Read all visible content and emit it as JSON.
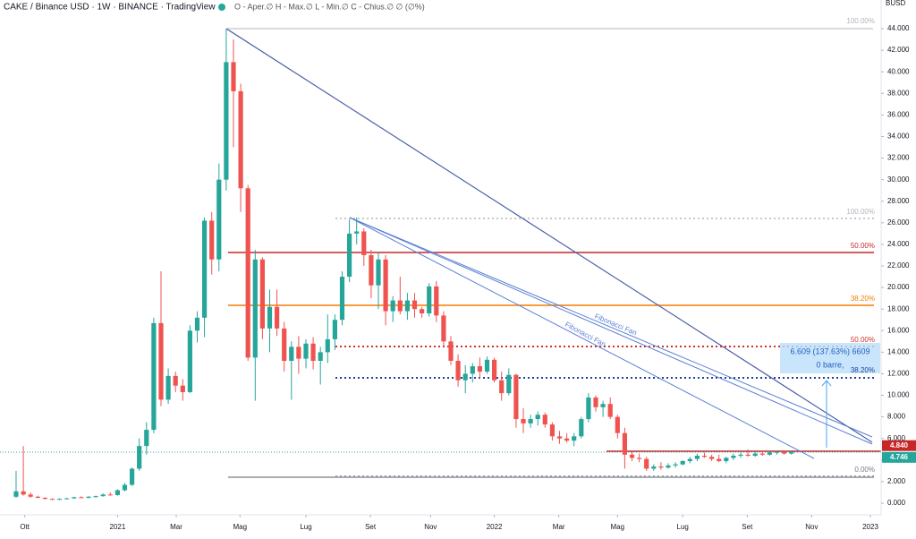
{
  "chart_data": {
    "type": "candlestick",
    "title": "CAKE / Binance USD · 1W · BINANCE · TradingView",
    "ohlc_legend": "O - Aper.∅ H - Max.∅ L - Min.∅ C - Chius.∅ ∅ (∅%)",
    "currency": "BUSD",
    "up_color": "#26a69a",
    "down_color": "#ef5350",
    "x": [
      0,
      1,
      2,
      3,
      4,
      5,
      6,
      7,
      8,
      9,
      10,
      11,
      12,
      13,
      14,
      15,
      16,
      17,
      18,
      19,
      20,
      21,
      22,
      23,
      24,
      25,
      26,
      27,
      28,
      29,
      30,
      31,
      32,
      33,
      34,
      35,
      36,
      37,
      38,
      39,
      40,
      41,
      42,
      43,
      44,
      45,
      46,
      47,
      48,
      49,
      50,
      51,
      52,
      53,
      54,
      55,
      56,
      57,
      58,
      59,
      60,
      61,
      62,
      63,
      64,
      65,
      66,
      67,
      68,
      69,
      70,
      71,
      72,
      73,
      74,
      75,
      76,
      77,
      78,
      79,
      80,
      81,
      82,
      83,
      84,
      85,
      86,
      87,
      88,
      89,
      90,
      91,
      92,
      93,
      94,
      95,
      96,
      97,
      98,
      99,
      100,
      101,
      102,
      103,
      104,
      105,
      106,
      107
    ],
    "open": [
      0.6,
      1.1,
      0.8,
      0.6,
      0.5,
      0.4,
      0.35,
      0.4,
      0.45,
      0.55,
      0.5,
      0.6,
      0.65,
      0.8,
      0.75,
      1.2,
      1.7,
      3.2,
      5.3,
      6.8,
      16.7,
      9.6,
      11.8,
      10.9,
      10.3,
      16.0,
      17.2,
      26.2,
      22.6,
      30.0,
      40.9,
      38.2,
      29.2,
      13.5,
      22.6,
      16.2,
      18.2,
      16.2,
      13.2,
      14.5,
      13.4,
      14.8,
      13.2,
      14.0,
      15.2,
      17.0,
      21.0,
      25.0,
      25.2,
      23.0,
      20.2,
      22.6,
      17.8,
      18.8,
      17.8,
      18.8,
      18.0,
      17.6,
      20.1,
      17.4,
      15.0,
      13.2,
      11.4,
      12.0,
      12.7,
      12.2,
      13.3,
      11.4,
      10.2,
      11.9,
      7.8,
      7.4,
      7.8,
      8.2,
      7.3,
      6.2,
      6.0,
      5.8,
      6.2,
      7.8,
      9.8,
      8.9,
      9.2,
      8.0,
      6.5,
      4.5,
      4.2,
      4.1,
      3.2,
      3.4,
      3.3,
      3.5,
      3.6,
      3.9,
      4.1,
      4.4,
      4.3,
      4.1,
      3.9,
      4.2,
      4.4,
      4.5,
      4.4,
      4.6,
      4.5,
      4.7,
      4.75,
      4.6
    ],
    "high": [
      3.0,
      5.3,
      1.0,
      0.7,
      0.55,
      0.45,
      0.45,
      0.5,
      0.6,
      0.65,
      0.65,
      0.7,
      0.9,
      1.0,
      1.3,
      1.9,
      3.3,
      6.0,
      7.5,
      17.2,
      21.5,
      12.5,
      12.2,
      11.5,
      16.5,
      17.8,
      26.5,
      27.0,
      31.5,
      44.0,
      43.0,
      38.9,
      29.5,
      23.5,
      22.8,
      19.8,
      19.8,
      16.8,
      15.0,
      15.5,
      15.2,
      15.4,
      14.5,
      17.5,
      17.5,
      21.5,
      26.3,
      26.5,
      25.5,
      23.5,
      23.2,
      23.0,
      19.2,
      21.0,
      19.5,
      19.5,
      18.2,
      20.4,
      20.6,
      17.8,
      15.5,
      13.8,
      12.8,
      13.0,
      13.5,
      13.6,
      13.5,
      12.2,
      12.5,
      12.0,
      8.8,
      8.2,
      8.5,
      8.4,
      7.5,
      6.7,
      6.5,
      6.5,
      8.0,
      10.2,
      10.0,
      9.5,
      9.8,
      8.2,
      7.0,
      4.8,
      4.6,
      4.3,
      3.6,
      3.8,
      3.7,
      3.8,
      4.0,
      4.3,
      4.6,
      4.7,
      4.5,
      4.5,
      4.3,
      4.6,
      4.7,
      5.0,
      4.8,
      4.9,
      4.8,
      4.9,
      4.9,
      4.9
    ],
    "low": [
      0.5,
      0.7,
      0.5,
      0.45,
      0.35,
      0.3,
      0.3,
      0.35,
      0.4,
      0.45,
      0.45,
      0.5,
      0.6,
      0.7,
      0.7,
      1.1,
      1.6,
      3.0,
      4.5,
      6.5,
      9.0,
      9.2,
      10.3,
      9.5,
      10.2,
      14.9,
      15.4,
      21.2,
      21.5,
      29.0,
      33.0,
      27.0,
      13.2,
      9.5,
      15.2,
      14.0,
      15.5,
      12.2,
      9.6,
      12.0,
      12.5,
      12.4,
      11.0,
      13.0,
      14.2,
      16.5,
      20.5,
      24.0,
      22.0,
      19.0,
      18.0,
      16.5,
      16.8,
      17.5,
      17.0,
      17.2,
      17.2,
      17.3,
      16.8,
      14.5,
      12.8,
      10.8,
      10.2,
      11.2,
      11.6,
      12.0,
      11.2,
      9.5,
      10.0,
      7.0,
      6.5,
      7.0,
      7.2,
      7.0,
      5.8,
      5.5,
      5.6,
      5.3,
      6.0,
      7.5,
      8.5,
      8.0,
      7.8,
      6.0,
      3.2,
      3.9,
      3.8,
      3.0,
      3.0,
      3.1,
      3.2,
      3.3,
      3.5,
      3.7,
      3.9,
      4.2,
      3.9,
      3.8,
      3.7,
      4.0,
      4.2,
      4.3,
      4.3,
      4.4,
      4.4,
      4.5,
      4.5,
      4.5
    ],
    "close": [
      1.1,
      0.8,
      0.6,
      0.5,
      0.4,
      0.35,
      0.4,
      0.45,
      0.55,
      0.5,
      0.6,
      0.65,
      0.8,
      0.75,
      1.2,
      1.7,
      3.2,
      5.3,
      6.8,
      16.7,
      9.6,
      11.8,
      10.9,
      10.3,
      16.0,
      17.2,
      26.2,
      22.6,
      30.0,
      40.9,
      38.2,
      29.2,
      13.5,
      22.6,
      16.2,
      18.2,
      16.2,
      13.2,
      14.5,
      13.4,
      14.8,
      13.2,
      14.0,
      15.2,
      17.0,
      21.0,
      25.0,
      25.2,
      23.0,
      20.2,
      22.6,
      17.8,
      18.8,
      17.8,
      18.8,
      18.0,
      17.6,
      20.1,
      17.4,
      15.0,
      13.2,
      11.4,
      12.0,
      12.7,
      12.2,
      13.3,
      11.4,
      10.2,
      11.9,
      7.8,
      7.4,
      7.8,
      8.2,
      7.3,
      6.2,
      6.0,
      5.8,
      6.2,
      7.8,
      9.8,
      8.9,
      9.2,
      8.0,
      6.5,
      4.5,
      4.2,
      4.1,
      3.2,
      3.4,
      3.3,
      3.5,
      3.6,
      3.9,
      4.1,
      4.4,
      4.3,
      4.1,
      3.9,
      4.2,
      4.4,
      4.5,
      4.4,
      4.6,
      4.5,
      4.7,
      4.75,
      4.6,
      4.746
    ],
    "xlim": [
      -2.22,
      119.38
    ],
    "xticks": [
      {
        "value": 1.2,
        "label": "Ott"
      },
      {
        "value": 14.0,
        "label": "2021"
      },
      {
        "value": 22.1,
        "label": "Mar"
      },
      {
        "value": 30.9,
        "label": "Mag"
      },
      {
        "value": 40.0,
        "label": "Lug"
      },
      {
        "value": 48.9,
        "label": "Set"
      },
      {
        "value": 57.2,
        "label": "Nov"
      },
      {
        "value": 66.0,
        "label": "2022"
      },
      {
        "value": 74.9,
        "label": "Mar"
      },
      {
        "value": 83.0,
        "label": "Mag"
      },
      {
        "value": 92.0,
        "label": "Lug"
      },
      {
        "value": 100.9,
        "label": "Set"
      },
      {
        "value": 109.8,
        "label": "Nov"
      },
      {
        "value": 117.9,
        "label": "2023"
      }
    ],
    "ylim": [
      -1.08,
      46.66
    ],
    "yticks": [
      {
        "value": 0,
        "label": "0.000"
      },
      {
        "value": 2,
        "label": "2.000"
      },
      {
        "value": 4,
        "label": "4.000"
      },
      {
        "value": 6,
        "label": "6.000"
      },
      {
        "value": 8,
        "label": "8.000"
      },
      {
        "value": 10,
        "label": "10.000"
      },
      {
        "value": 12,
        "label": "12.000"
      },
      {
        "value": 14,
        "label": "14.000"
      },
      {
        "value": 16,
        "label": "16.000"
      },
      {
        "value": 18,
        "label": "18.000"
      },
      {
        "value": 20,
        "label": "20.000"
      },
      {
        "value": 22,
        "label": "22.000"
      },
      {
        "value": 24,
        "label": "24.000"
      },
      {
        "value": 26,
        "label": "26.000"
      },
      {
        "value": 28,
        "label": "28.000"
      },
      {
        "value": 30,
        "label": "30.000"
      },
      {
        "value": 32,
        "label": "32.000"
      },
      {
        "value": 34,
        "label": "34.000"
      },
      {
        "value": 36,
        "label": "36.000"
      },
      {
        "value": 38,
        "label": "38.000"
      },
      {
        "value": 40,
        "label": "40.000"
      },
      {
        "value": 42,
        "label": "42.000"
      },
      {
        "value": 44,
        "label": "44.000"
      }
    ],
    "price_labels": [
      {
        "value": 4.84,
        "label": "4.840",
        "color": "#c62828"
      },
      {
        "value": 4.746,
        "label": "4.746",
        "color": "#26a69a"
      }
    ],
    "annotations": [
      "100.00%",
      "50.00%",
      "38.20%",
      "0.00%",
      "100.00%",
      "50.00%",
      "38.20%",
      "Fibonacci Fan",
      "Fibonacci Fan",
      "6.609 (137.63%) 6609",
      "0 barre,"
    ]
  }
}
